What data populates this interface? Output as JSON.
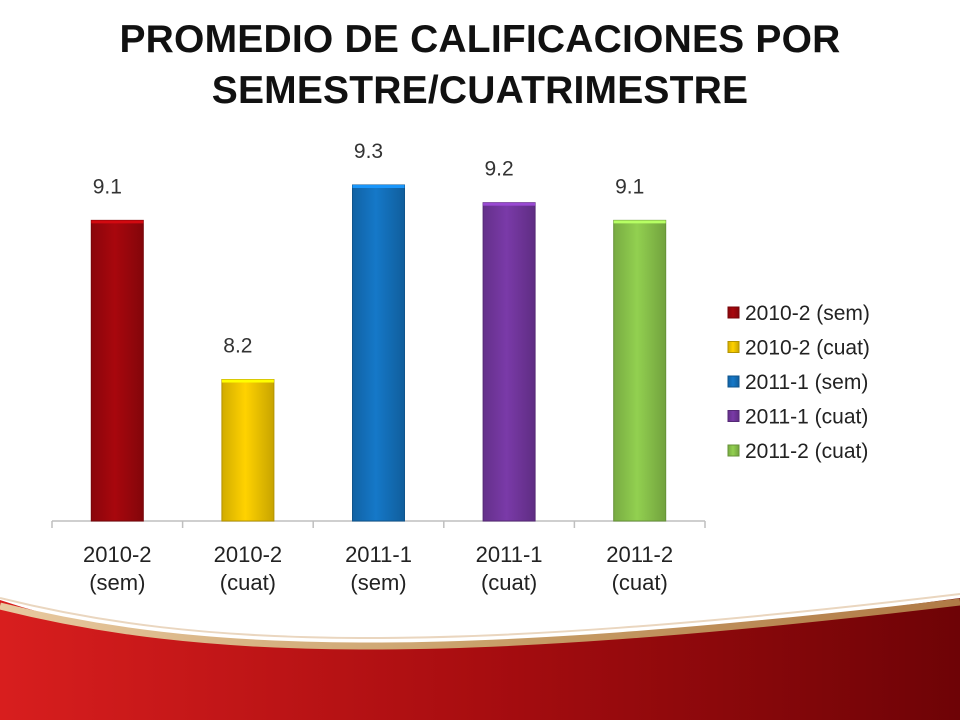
{
  "title": {
    "line1": "PROMEDIO DE CALIFICACIONES POR",
    "line2": "SEMESTRE/CUATRIMESTRE"
  },
  "chart_data": {
    "type": "bar",
    "title": "PROMEDIO DE CALIFICACIONES POR SEMESTRE/CUATRIMESTRE",
    "categories": [
      "2010-2 (sem)",
      "2010-2 (cuat)",
      "2011-1 (sem)",
      "2011-1 (cuat)",
      "2011-2 (cuat)"
    ],
    "category_lines": [
      [
        "2010-2",
        "(sem)"
      ],
      [
        "2010-2",
        "(cuat)"
      ],
      [
        "2011-1",
        "(sem)"
      ],
      [
        "2011-1",
        "(cuat)"
      ],
      [
        "2011-2",
        "(cuat)"
      ]
    ],
    "values": [
      9.1,
      8.2,
      9.3,
      9.2,
      9.1
    ],
    "data_labels": [
      "9.1",
      "8.2",
      "9.3",
      "9.2",
      "9.1"
    ],
    "colors": [
      "#a8070d",
      "#ffd200",
      "#1578c8",
      "#7a3aa8",
      "#92d050"
    ],
    "ylim": [
      7.4,
      9.3
    ],
    "grid": false,
    "legend_position": "right",
    "legend": [
      "2010-2 (sem)",
      "2010-2 (cuat)",
      "2011-1 (sem)",
      "2011-1 (cuat)",
      "2011-2 (cuat)"
    ]
  }
}
